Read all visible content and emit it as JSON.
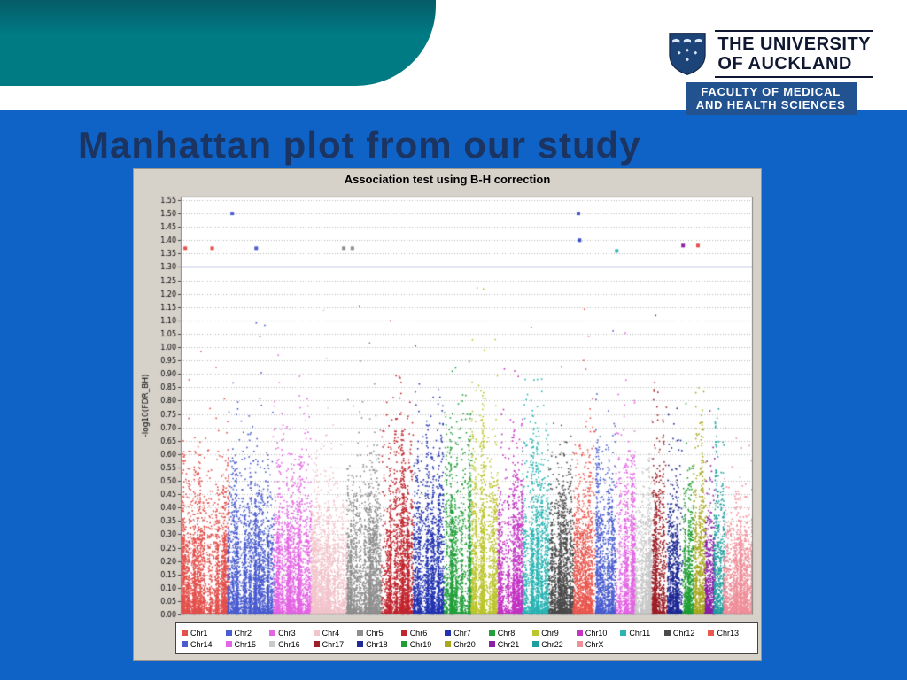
{
  "slide": {
    "title": "Manhattan plot from our study"
  },
  "colors": {
    "slide_background": "#0f63c6",
    "swoosh_teal": "#007a83",
    "banner_navy": "#235290",
    "title_navy": "#1b3461",
    "chart_panel_gray": "#d6d2ca"
  },
  "logo": {
    "university_line1": "THE UNIVERSITY",
    "university_line2": "OF AUCKLAND",
    "faculty_line1": "FACULTY OF MEDICAL",
    "faculty_line2": "AND HEALTH SCIENCES"
  },
  "chart_data": {
    "type": "scatter",
    "subtype": "manhattan",
    "title": "Association test using B-H correction",
    "xlabel": "",
    "ylabel": "-log10(FDR_BH)",
    "ylim": [
      0.0,
      1.55
    ],
    "ytick_step": 0.05,
    "grid": "horizontal-dotted",
    "legend_position": "bottom",
    "legend_columns": 13,
    "threshold_line": {
      "y": 1.3,
      "color": "#2b35a0"
    },
    "series": [
      {
        "name": "Chr1",
        "color": "#e4504c",
        "width_share": 0.082,
        "grass_max": 0.78
      },
      {
        "name": "Chr2",
        "color": "#4a5cd0",
        "width_share": 0.08,
        "grass_max": 0.8
      },
      {
        "name": "Chr3",
        "color": "#e465e4",
        "width_share": 0.065,
        "grass_max": 0.85
      },
      {
        "name": "Chr4",
        "color": "#f2c4cb",
        "width_share": 0.063,
        "grass_max": 0.72
      },
      {
        "name": "Chr5",
        "color": "#8f8f8f",
        "width_share": 0.06,
        "grass_max": 0.8
      },
      {
        "name": "Chr6",
        "color": "#c2252e",
        "width_share": 0.056,
        "grass_max": 0.95
      },
      {
        "name": "Chr7",
        "color": "#2233b2",
        "width_share": 0.052,
        "grass_max": 0.82
      },
      {
        "name": "Chr8",
        "color": "#22a03a",
        "width_share": 0.048,
        "grass_max": 0.9
      },
      {
        "name": "Chr9",
        "color": "#bcc52e",
        "width_share": 0.047,
        "grass_max": 0.95
      },
      {
        "name": "Chr10",
        "color": "#c433c4",
        "width_share": 0.044,
        "grass_max": 0.88
      },
      {
        "name": "Chr11",
        "color": "#2ab4b4",
        "width_share": 0.045,
        "grass_max": 0.9
      },
      {
        "name": "Chr12",
        "color": "#4a4a4a",
        "width_share": 0.044,
        "grass_max": 0.78
      },
      {
        "name": "Chr13",
        "color": "#ea574e",
        "width_share": 0.038,
        "grass_max": 0.85
      },
      {
        "name": "Chr14",
        "color": "#4a5cd0",
        "width_share": 0.035,
        "grass_max": 0.88
      },
      {
        "name": "Chr15",
        "color": "#e465e4",
        "width_share": 0.034,
        "grass_max": 0.85
      },
      {
        "name": "Chr16",
        "color": "#c9c9c9",
        "width_share": 0.03,
        "grass_max": 0.7
      },
      {
        "name": "Chr17",
        "color": "#9e1f27",
        "width_share": 0.027,
        "grass_max": 0.92
      },
      {
        "name": "Chr18",
        "color": "#1f2a96",
        "width_share": 0.026,
        "grass_max": 0.8
      },
      {
        "name": "Chr19",
        "color": "#1f9e33",
        "width_share": 0.019,
        "grass_max": 0.65
      },
      {
        "name": "Chr20",
        "color": "#a8a81f",
        "width_share": 0.021,
        "grass_max": 0.95
      },
      {
        "name": "Chr21",
        "color": "#8a1fa8",
        "width_share": 0.016,
        "grass_max": 0.7
      },
      {
        "name": "Chr22",
        "color": "#1f9e9e",
        "width_share": 0.017,
        "grass_max": 0.82
      },
      {
        "name": "ChrX",
        "color": "#ef8f9a",
        "width_share": 0.051,
        "grass_max": 0.6
      }
    ],
    "significant_points": [
      {
        "x_frac": 0.008,
        "y": 1.37,
        "color": "#e4504c"
      },
      {
        "x_frac": 0.055,
        "y": 1.37,
        "color": "#e4504c"
      },
      {
        "x_frac": 0.09,
        "y": 1.5,
        "color": "#4a5cd0"
      },
      {
        "x_frac": 0.132,
        "y": 1.37,
        "color": "#4a5cd0"
      },
      {
        "x_frac": 0.285,
        "y": 1.37,
        "color": "#8f8f8f"
      },
      {
        "x_frac": 0.3,
        "y": 1.37,
        "color": "#8f8f8f"
      },
      {
        "x_frac": 0.695,
        "y": 1.5,
        "color": "#3a50c8"
      },
      {
        "x_frac": 0.697,
        "y": 1.4,
        "color": "#3a50c8"
      },
      {
        "x_frac": 0.762,
        "y": 1.36,
        "color": "#2ab4b4"
      },
      {
        "x_frac": 0.878,
        "y": 1.38,
        "color": "#8a1fa8"
      },
      {
        "x_frac": 0.904,
        "y": 1.38,
        "color": "#e4504c"
      }
    ]
  }
}
